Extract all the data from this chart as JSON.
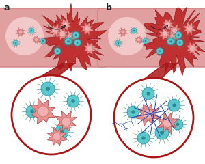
{
  "bg_color": "#ffffff",
  "vessel_outer": "#e0a0a0",
  "vessel_wall": "#d08080",
  "vessel_lumen": "#f2c8c8",
  "clot_color": "#c03030",
  "clot_dark": "#8b1a1a",
  "clot_light": "#d04040",
  "platelet_color": "#e89090",
  "platelet_outline": "#b05050",
  "platelet_center": "#f0b0b0",
  "bacteria_color": "#5bc8d0",
  "bacteria_outline": "#2a8a90",
  "bacteria_center": "#80d8e0",
  "circle_bg": "#ffffff",
  "circle_border": "#aa1515",
  "fibrin_color": "#2244aa",
  "connector_color": "#aa1515",
  "label_color": "#222222",
  "arrow_color": "#222222"
}
